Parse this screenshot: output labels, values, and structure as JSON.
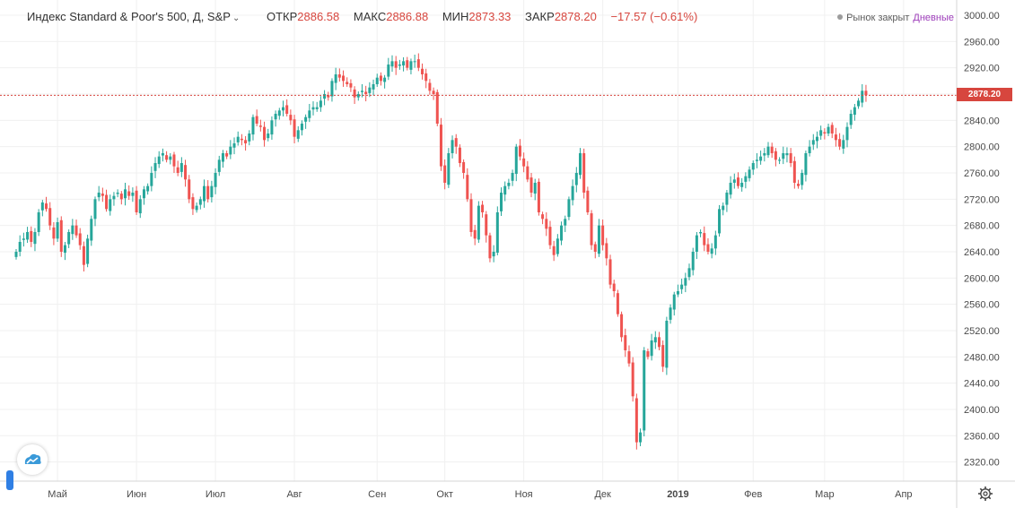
{
  "header": {
    "symbol_label": "Индекс Standard & Poor's 500, Д, S&P",
    "open_label": "ОТКР",
    "open_value": "2886.58",
    "high_label": "МАКС",
    "high_value": "2886.88",
    "low_label": "МИН",
    "low_value": "2873.33",
    "close_label": "ЗАКР",
    "close_value": "2878.20",
    "change": "−17.57 (−0.61%)",
    "market_status": "Рынок закрыт",
    "interval": "Дневные"
  },
  "chart_data": {
    "type": "candlestick",
    "ylim": [
      2300,
      3005
    ],
    "y_ticks": [
      2320,
      2360,
      2400,
      2440,
      2480,
      2520,
      2560,
      2600,
      2640,
      2680,
      2720,
      2760,
      2800,
      2840,
      2880,
      2920,
      2960,
      3000
    ],
    "y_tick_labels": [
      "2320.00",
      "2360.00",
      "2400.00",
      "2440.00",
      "2480.00",
      "2520.00",
      "2560.00",
      "2600.00",
      "2640.00",
      "2680.00",
      "2720.00",
      "2760.00",
      "2800.00",
      "2840.00",
      "2880.00",
      "2920.00",
      "2960.00",
      "3000.00"
    ],
    "x_ticks": [
      {
        "label": "Май",
        "bold": false,
        "bar": 11
      },
      {
        "label": "Июн",
        "bold": false,
        "bar": 32
      },
      {
        "label": "Июл",
        "bold": false,
        "bar": 53
      },
      {
        "label": "Авг",
        "bold": false,
        "bar": 74
      },
      {
        "label": "Сен",
        "bold": false,
        "bar": 96
      },
      {
        "label": "Окт",
        "bold": false,
        "bar": 114
      },
      {
        "label": "Ноя",
        "bold": false,
        "bar": 135
      },
      {
        "label": "Дек",
        "bold": false,
        "bar": 156
      },
      {
        "label": "2019",
        "bold": true,
        "bar": 176
      },
      {
        "label": "Фев",
        "bold": false,
        "bar": 196
      },
      {
        "label": "Мар",
        "bold": false,
        "bar": 215
      },
      {
        "label": "Апр",
        "bold": false,
        "bar": 236
      }
    ],
    "last_price": 2878.2,
    "last_price_label": "2878.20",
    "closes": [
      2640,
      2655,
      2660,
      2670,
      2655,
      2670,
      2700,
      2715,
      2705,
      2680,
      2660,
      2685,
      2640,
      2650,
      2670,
      2680,
      2665,
      2650,
      2620,
      2660,
      2690,
      2720,
      2730,
      2725,
      2705,
      2720,
      2725,
      2730,
      2720,
      2735,
      2725,
      2730,
      2700,
      2720,
      2735,
      2740,
      2760,
      2775,
      2785,
      2790,
      2780,
      2785,
      2770,
      2760,
      2775,
      2750,
      2720,
      2705,
      2710,
      2720,
      2740,
      2720,
      2740,
      2760,
      2780,
      2790,
      2785,
      2800,
      2805,
      2815,
      2810,
      2805,
      2820,
      2845,
      2835,
      2830,
      2810,
      2820,
      2840,
      2850,
      2855,
      2860,
      2850,
      2840,
      2815,
      2825,
      2835,
      2845,
      2855,
      2860,
      2860,
      2870,
      2880,
      2875,
      2900,
      2910,
      2905,
      2900,
      2895,
      2890,
      2875,
      2880,
      2885,
      2880,
      2890,
      2895,
      2905,
      2900,
      2905,
      2925,
      2930,
      2920,
      2925,
      2930,
      2920,
      2930,
      2930,
      2920,
      2910,
      2900,
      2885,
      2880,
      2835,
      2770,
      2745,
      2790,
      2810,
      2800,
      2775,
      2760,
      2720,
      2670,
      2660,
      2710,
      2700,
      2665,
      2630,
      2640,
      2700,
      2730,
      2740,
      2745,
      2760,
      2800,
      2785,
      2770,
      2750,
      2730,
      2745,
      2700,
      2690,
      2675,
      2650,
      2635,
      2660,
      2680,
      2690,
      2720,
      2740,
      2760,
      2790,
      2730,
      2700,
      2650,
      2640,
      2680,
      2650,
      2630,
      2590,
      2580,
      2545,
      2510,
      2490,
      2470,
      2420,
      2350,
      2365,
      2490,
      2480,
      2505,
      2510,
      2495,
      2465,
      2535,
      2555,
      2575,
      2580,
      2590,
      2600,
      2615,
      2640,
      2665,
      2670,
      2650,
      2640,
      2645,
      2665,
      2705,
      2710,
      2730,
      2745,
      2750,
      2740,
      2745,
      2755,
      2765,
      2775,
      2780,
      2785,
      2790,
      2800,
      2790,
      2780,
      2780,
      2790,
      2790,
      2775,
      2745,
      2740,
      2760,
      2790,
      2800,
      2810,
      2815,
      2825,
      2820,
      2830,
      2820,
      2810,
      2800,
      2810,
      2830,
      2850,
      2860,
      2870,
      2885,
      2878.2
    ]
  }
}
